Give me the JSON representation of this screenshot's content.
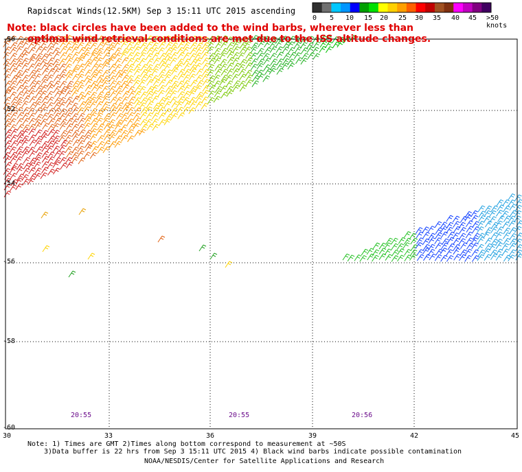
{
  "title": "Rapidscat Winds(12.5KM) Sep  3 15:11 UTC 2015 ascending",
  "note_line1": "Note: black circles have been added to the wind barbs, wherever less than",
  "note_line2": "optimal wind retrieval conditions are met due to the ISS altitude changes.",
  "legend": {
    "labels": [
      "0",
      "5",
      "10",
      "15",
      "20",
      "25",
      "30",
      "35",
      "40",
      "45",
      ">50 knots"
    ],
    "colors": [
      "#303030",
      "#707070",
      "#00c8ff",
      "#0096ff",
      "#0000ff",
      "#00a000",
      "#00e000",
      "#ffff00",
      "#ffd000",
      "#ffa000",
      "#ff6000",
      "#ff0000",
      "#c00000",
      "#a05020",
      "#803010",
      "#ff00ff",
      "#c000c0",
      "#800080",
      "#400060"
    ]
  },
  "map": {
    "lat_labels": [
      "-50",
      "-52",
      "-54",
      "-56",
      "-58",
      "-60"
    ],
    "lon_labels": [
      "30",
      "33",
      "36",
      "39",
      "42",
      "45"
    ],
    "time_labels": [
      "20:55",
      "20:55",
      "20:56"
    ]
  },
  "footer": {
    "line1": "Note: 1) Times are GMT 2)Times along bottom correspond to measurement at ~50S",
    "line2": "3)Data buffer is 22 hrs from Sep  3 15:11 UTC 2015 4) Black wind barbs indicate possible contamination",
    "line3": "NOAA/NESDIS/Center for Satellite Applications and Research"
  }
}
